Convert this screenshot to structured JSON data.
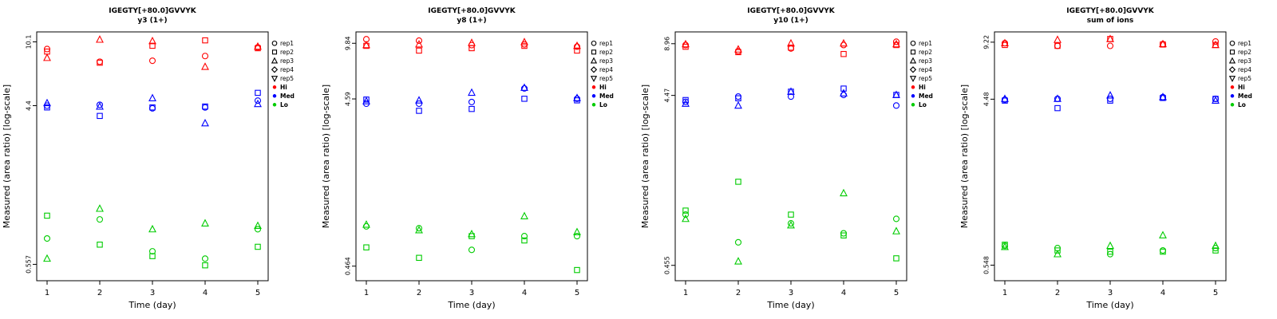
{
  "figure": {
    "background": "#ffffff",
    "panel_count": 4
  },
  "legend": {
    "reps": [
      "rep1",
      "rep2",
      "rep3",
      "rep4",
      "rep5"
    ],
    "markers": {
      "rep1": "circle",
      "rep2": "square",
      "rep3": "triangle",
      "rep4": "diamond",
      "rep5": "triangle-down"
    },
    "levels": [
      {
        "label": "Hi",
        "color": "#ff0000"
      },
      {
        "label": "Med",
        "color": "#0000ff"
      },
      {
        "label": "Lo",
        "color": "#00cc00"
      }
    ]
  },
  "chart_data": [
    {
      "type": "scatter",
      "title": "IGEGTY[+80.0]GVVYK",
      "subtitle": "y3 (1+)",
      "xlabel": "Time (day)",
      "ylabel": "Measured (area ratio) [log-scale]",
      "x": [
        1,
        2,
        3,
        4,
        5
      ],
      "xticklabels": [
        "1",
        "2",
        "3",
        "4",
        "5"
      ],
      "yticks": [
        "10.1",
        "4.4",
        "0.557"
      ],
      "ylim": [
        0.45,
        11.5
      ],
      "yscale": "log",
      "groups": [
        {
          "name": "Hi",
          "color": "#ff0000",
          "series": [
            {
              "rep": "rep1",
              "values": [
                9.2,
                7.8,
                7.9,
                8.4,
                9.4
              ]
            },
            {
              "rep": "rep2",
              "values": [
                8.9,
                7.7,
                9.6,
                10.3,
                9.3
              ]
            },
            {
              "rep": "rep3",
              "values": [
                8.2,
                10.4,
                10.2,
                7.3,
                9.5
              ]
            }
          ]
        },
        {
          "name": "Med",
          "color": "#0000ff",
          "series": [
            {
              "rep": "rep1",
              "values": [
                4.4,
                4.45,
                4.25,
                4.3,
                4.7
              ]
            },
            {
              "rep": "rep2",
              "values": [
                4.3,
                3.85,
                4.3,
                4.35,
                5.2
              ]
            },
            {
              "rep": "rep3",
              "values": [
                4.55,
                4.35,
                4.85,
                3.5,
                4.5
              ]
            }
          ]
        },
        {
          "name": "Lo",
          "color": "#00cc00",
          "series": [
            {
              "rep": "rep1",
              "values": [
                0.78,
                1.0,
                0.66,
                0.6,
                0.88
              ]
            },
            {
              "rep": "rep2",
              "values": [
                1.05,
                0.72,
                0.62,
                0.55,
                0.7
              ]
            },
            {
              "rep": "rep3",
              "values": [
                0.6,
                1.15,
                0.88,
                0.95,
                0.92
              ]
            }
          ]
        }
      ]
    },
    {
      "type": "scatter",
      "title": "IGEGTY[+80.0]GVVYK",
      "subtitle": "y8 (1+)",
      "xlabel": "Time (day)",
      "ylabel": "Measured (area ratio) [log-scale]",
      "x": [
        1,
        2,
        3,
        4,
        5
      ],
      "xticklabels": [
        "1",
        "2",
        "3",
        "4",
        "5"
      ],
      "yticks": [
        "9.84",
        "4.59",
        "0.464"
      ],
      "ylim": [
        0.38,
        11.5
      ],
      "yscale": "log",
      "groups": [
        {
          "name": "Hi",
          "color": "#ff0000",
          "series": [
            {
              "rep": "rep1",
              "values": [
                10.4,
                10.2,
                9.6,
                9.7,
                9.4
              ]
            },
            {
              "rep": "rep2",
              "values": [
                9.5,
                8.9,
                9.2,
                9.5,
                8.9
              ]
            },
            {
              "rep": "rep3",
              "values": [
                9.6,
                9.7,
                9.9,
                10.0,
                9.5
              ]
            }
          ]
        },
        {
          "name": "Med",
          "color": "#0000ff",
          "series": [
            {
              "rep": "rep1",
              "values": [
                4.3,
                4.3,
                4.4,
                5.3,
                4.6
              ]
            },
            {
              "rep": "rep2",
              "values": [
                4.55,
                3.9,
                4.0,
                4.6,
                4.5
              ]
            },
            {
              "rep": "rep3",
              "values": [
                4.45,
                4.5,
                5.0,
                5.35,
                4.65
              ]
            }
          ]
        },
        {
          "name": "Lo",
          "color": "#00cc00",
          "series": [
            {
              "rep": "rep1",
              "values": [
                0.8,
                0.78,
                0.58,
                0.7,
                0.7
              ]
            },
            {
              "rep": "rep2",
              "values": [
                0.6,
                0.52,
                0.7,
                0.66,
                0.44
              ]
            },
            {
              "rep": "rep3",
              "values": [
                0.82,
                0.76,
                0.72,
                0.92,
                0.74
              ]
            }
          ]
        }
      ]
    },
    {
      "type": "scatter",
      "title": "IGEGTY[+80.0]GVVYK",
      "subtitle": "y10 (1+)",
      "xlabel": "Time (day)",
      "ylabel": "Measured (area ratio) [log-scale]",
      "x": [
        1,
        2,
        3,
        4,
        5
      ],
      "xticklabels": [
        "1",
        "2",
        "3",
        "4",
        "5"
      ],
      "yticks": [
        "8.96",
        "4.47",
        "0.455"
      ],
      "ylim": [
        0.37,
        10.5
      ],
      "yscale": "log",
      "groups": [
        {
          "name": "Hi",
          "color": "#ff0000",
          "series": [
            {
              "rep": "rep1",
              "values": [
                8.8,
                8.1,
                8.4,
                8.8,
                9.2
              ]
            },
            {
              "rep": "rep2",
              "values": [
                8.6,
                8.0,
                8.5,
                7.8,
                8.8
              ]
            },
            {
              "rep": "rep3",
              "values": [
                8.9,
                8.3,
                9.0,
                9.0,
                8.9
              ]
            }
          ]
        },
        {
          "name": "Med",
          "color": "#0000ff",
          "series": [
            {
              "rep": "rep1",
              "values": [
                4.1,
                4.4,
                4.4,
                4.5,
                3.9
              ]
            },
            {
              "rep": "rep2",
              "values": [
                4.2,
                4.3,
                4.7,
                4.9,
                4.5
              ]
            },
            {
              "rep": "rep3",
              "values": [
                4.0,
                3.9,
                4.7,
                4.6,
                4.5
              ]
            }
          ]
        },
        {
          "name": "Lo",
          "color": "#00cc00",
          "series": [
            {
              "rep": "rep1",
              "values": [
                0.9,
                0.62,
                0.8,
                0.7,
                0.85
              ]
            },
            {
              "rep": "rep2",
              "values": [
                0.95,
                1.4,
                0.9,
                0.68,
                0.5
              ]
            },
            {
              "rep": "rep3",
              "values": [
                0.85,
                0.48,
                0.78,
                1.2,
                0.72
              ]
            }
          ]
        }
      ]
    },
    {
      "type": "scatter",
      "title": "IGEGTY[+80.0]GVVYK",
      "subtitle": "sum of ions",
      "xlabel": "Time (day)",
      "ylabel": "Measured (area ratio) [log-scale]",
      "x": [
        1,
        2,
        3,
        4,
        5
      ],
      "xticklabels": [
        "1",
        "2",
        "3",
        "4",
        "5"
      ],
      "yticks": [
        "9.22",
        "4.48",
        "0.548"
      ],
      "ylim": [
        0.45,
        10.5
      ],
      "yscale": "log",
      "groups": [
        {
          "name": "Hi",
          "color": "#ff0000",
          "series": [
            {
              "rep": "rep1",
              "values": [
                9.1,
                8.8,
                8.8,
                9.0,
                9.3
              ]
            },
            {
              "rep": "rep2",
              "values": [
                8.9,
                8.8,
                9.6,
                8.95,
                8.9
              ]
            },
            {
              "rep": "rep3",
              "values": [
                9.1,
                9.5,
                9.6,
                9.0,
                8.9
              ]
            }
          ]
        },
        {
          "name": "Med",
          "color": "#0000ff",
          "series": [
            {
              "rep": "rep1",
              "values": [
                4.45,
                4.5,
                4.5,
                4.6,
                4.5
              ]
            },
            {
              "rep": "rep2",
              "values": [
                4.4,
                4.0,
                4.4,
                4.55,
                4.5
              ]
            },
            {
              "rep": "rep3",
              "values": [
                4.5,
                4.5,
                4.7,
                4.6,
                4.4
              ]
            }
          ]
        },
        {
          "name": "Lo",
          "color": "#00cc00",
          "series": [
            {
              "rep": "rep1",
              "values": [
                0.7,
                0.68,
                0.63,
                0.66,
                0.68
              ]
            },
            {
              "rep": "rep2",
              "values": [
                0.71,
                0.66,
                0.65,
                0.65,
                0.66
              ]
            },
            {
              "rep": "rep3",
              "values": [
                0.69,
                0.63,
                0.7,
                0.8,
                0.7
              ]
            }
          ]
        }
      ]
    }
  ]
}
